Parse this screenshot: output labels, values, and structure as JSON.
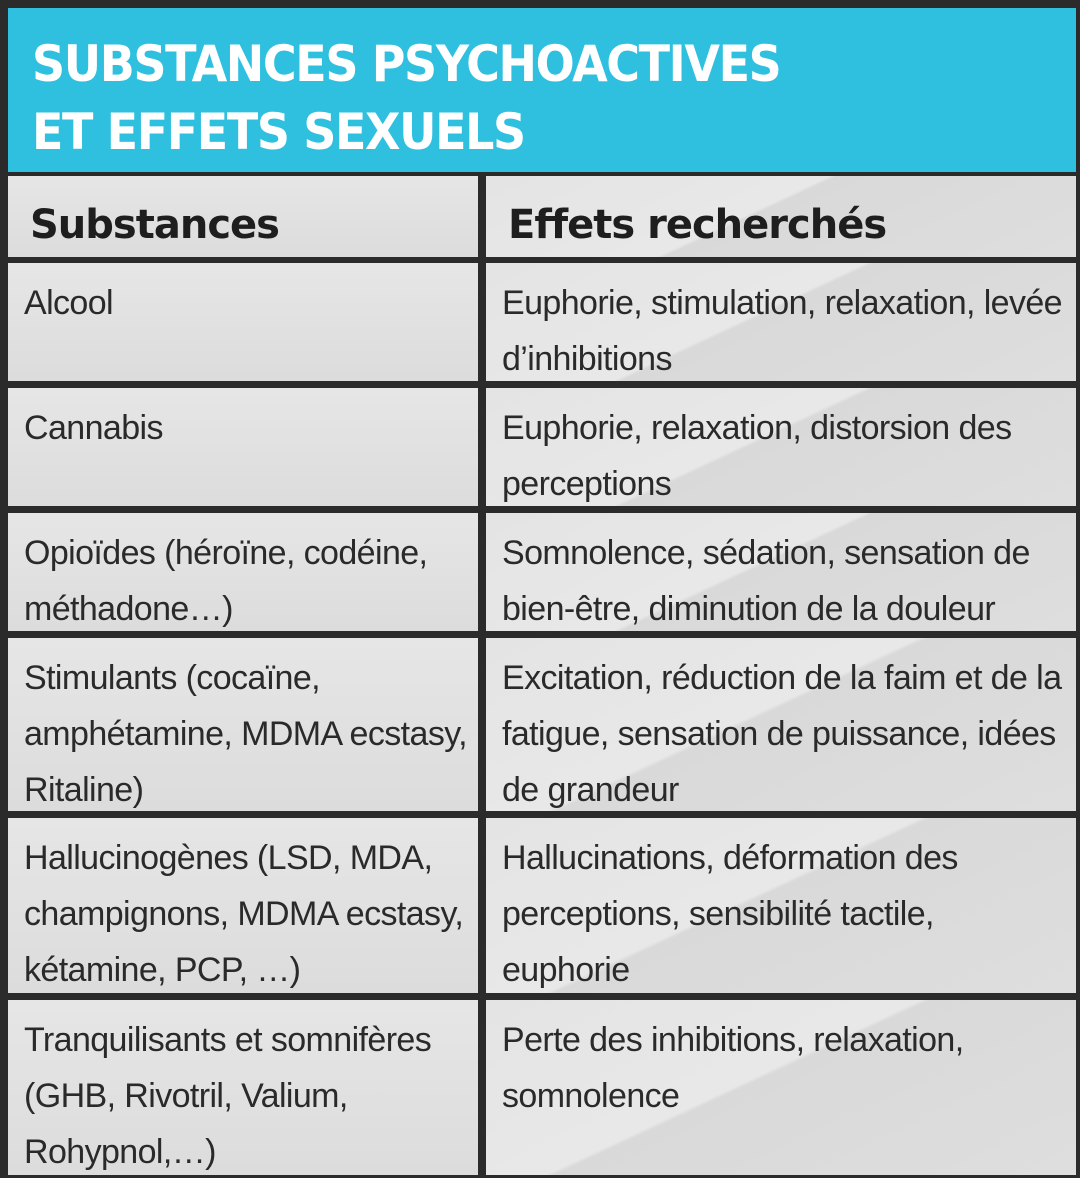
{
  "title": {
    "line1": "SUBSTANCES PSYCHOACTIVES",
    "line2": "ET EFFETS SEXUELS"
  },
  "table": {
    "headers": [
      "Substances",
      "Effets recherchés"
    ],
    "rows": [
      {
        "substance": "Alcool",
        "effets": "Euphorie, stimulation, relaxation, levée d’inhibitions"
      },
      {
        "substance": "Cannabis",
        "effets": "Euphorie, relaxation, distorsion des perceptions"
      },
      {
        "substance": "Opioïdes (héroïne, codéine, méthadone…)",
        "effets": "Somnolence, sédation, sensation de bien-être, diminution de la douleur"
      },
      {
        "substance": "Stimulants (cocaïne, amphétamine, MDMA ecstasy, Ritaline)",
        "effets": "Excitation, réduction de la faim et de la fatigue, sensation de puissance, idées de grandeur"
      },
      {
        "substance": "Hallucinogènes (LSD, MDA, champignons, MDMA ecstasy, kétamine, PCP, …)",
        "effets": "Hallucinations, déformation des perceptions, sensibilité tactile, euphorie"
      },
      {
        "substance": "Tranquilisants et somnifères (GHB, Rivotril, Valium, Rohypnol,…)",
        "effets": "Perte des inhibitions, relaxation, somnolence"
      }
    ]
  }
}
